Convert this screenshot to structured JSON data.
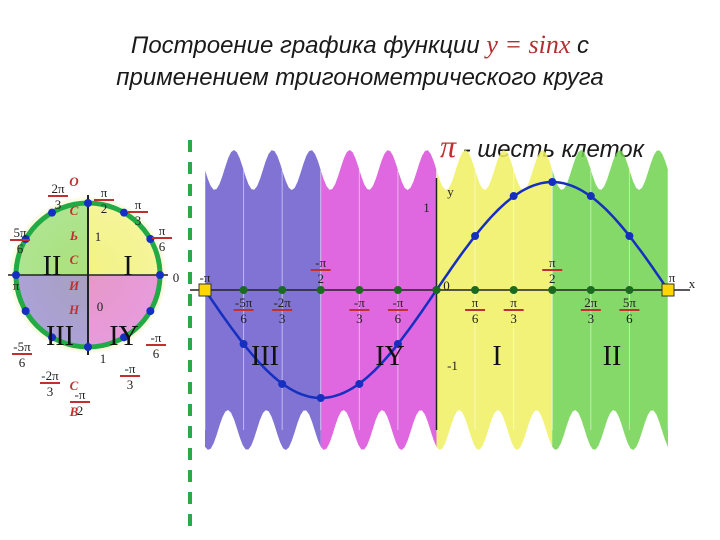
{
  "title": {
    "line1_prefix": "Построение графика функции ",
    "line1_function": "y = sinx",
    "line1_suffix": " с",
    "line2": "применением тригонометрического круга"
  },
  "note": {
    "symbol": "π",
    "text": " - шесть клеток"
  },
  "chart_data": {
    "type": "line",
    "title": "",
    "function": "y = sinx",
    "x": [
      "-π",
      "-5π/6",
      "-2π/3",
      "-π/2",
      "-π/3",
      "-π/6",
      "0",
      "π/6",
      "π/3",
      "π/2",
      "2π/3",
      "5π/6",
      "π"
    ],
    "y": [
      0,
      -0.5,
      -0.87,
      -1,
      -0.87,
      -0.5,
      0,
      0.5,
      0.87,
      1,
      0.87,
      0.5,
      0
    ],
    "xlabel": "x",
    "ylabel": "y",
    "y_tick_labels": [
      "1",
      "-1",
      "0"
    ],
    "quadrant_labels": [
      "III",
      "IY",
      "I",
      "II"
    ],
    "band_colors": [
      "#6a5acd",
      "#d94cd9",
      "#f0f060",
      "#6fd24f"
    ]
  },
  "circle": {
    "angle_labels": [
      "π/2",
      "π/3",
      "π/6",
      "0",
      "-π/6",
      "-π/3",
      "-π/2",
      "-2π/3",
      "-5π/6",
      "π",
      "5π/6",
      "2π/3"
    ],
    "axis_labels": [
      "1",
      "1",
      "0"
    ],
    "quadrants": [
      "II",
      "I",
      "III",
      "IY"
    ],
    "letters": [
      "О",
      "С",
      "Ь",
      "С",
      "И",
      "Н",
      "С",
      "В"
    ]
  },
  "colors": {
    "curve": "#1530c0",
    "marker": "#1a6a20",
    "dashed": "#2aa84a",
    "circle": "#22aa44",
    "tick": "#c03030"
  }
}
